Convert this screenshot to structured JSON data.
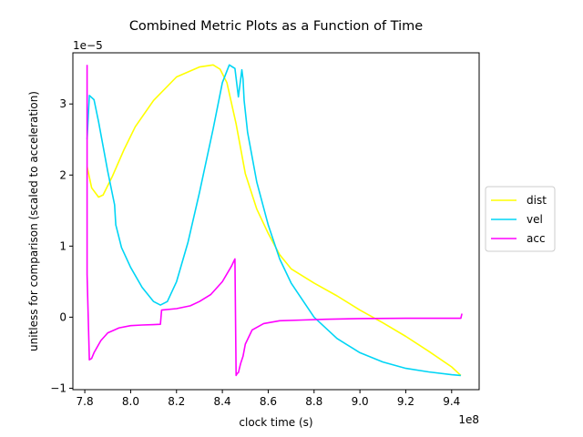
{
  "chart_data": {
    "type": "line",
    "title": "Combined Metric Plots as a Function of Time",
    "xlabel": "clock time (s)",
    "ylabel": "unitless for comparison (scaled to acceleration)",
    "x_offset_label": "1e8",
    "y_offset_label": "1e−5",
    "xlim": [
      7.748,
      9.52
    ],
    "ylim": [
      -1.02,
      3.72
    ],
    "x_ticks": [
      7.8,
      8.0,
      8.2,
      8.4,
      8.6,
      8.8,
      9.0,
      9.2,
      9.4
    ],
    "x_tick_labels": [
      "7.8",
      "8.0",
      "8.2",
      "8.4",
      "8.6",
      "8.8",
      "9.0",
      "9.2",
      "9.4"
    ],
    "y_ticks": [
      -1,
      0,
      1,
      2,
      3
    ],
    "y_tick_labels": [
      "−1",
      "0",
      "1",
      "2",
      "3"
    ],
    "grid": false,
    "legend_position": "center-right, outside plot",
    "series": [
      {
        "name": "dist",
        "color": "#ffff00",
        "x": [
          7.81,
          7.83,
          7.86,
          7.88,
          7.92,
          7.97,
          8.02,
          8.1,
          8.2,
          8.3,
          8.36,
          8.39,
          8.42,
          8.46,
          8.5,
          8.55,
          8.6,
          8.65,
          8.7,
          8.8,
          8.9,
          9.0,
          9.1,
          9.2,
          9.3,
          9.4,
          9.44
        ],
        "y": [
          2.12,
          1.82,
          1.69,
          1.72,
          1.98,
          2.35,
          2.68,
          3.05,
          3.38,
          3.52,
          3.55,
          3.49,
          3.3,
          2.72,
          2.02,
          1.52,
          1.18,
          0.88,
          0.68,
          0.48,
          0.3,
          0.1,
          -0.08,
          -0.27,
          -0.48,
          -0.7,
          -0.82
        ]
      },
      {
        "name": "vel",
        "color": "#00d5f5",
        "x": [
          7.81,
          7.82,
          7.84,
          7.86,
          7.9,
          7.93,
          7.935,
          7.96,
          8.0,
          8.05,
          8.1,
          8.13,
          8.16,
          8.2,
          8.25,
          8.3,
          8.36,
          8.4,
          8.43,
          8.455,
          8.47,
          8.485,
          8.49,
          8.495,
          8.51,
          8.55,
          8.6,
          8.65,
          8.7,
          8.8,
          8.9,
          9.0,
          9.1,
          9.2,
          9.3,
          9.4,
          9.44
        ],
        "y": [
          2.5,
          3.12,
          3.06,
          2.75,
          2.05,
          1.58,
          1.3,
          0.98,
          0.7,
          0.42,
          0.22,
          0.17,
          0.22,
          0.5,
          1.05,
          1.75,
          2.65,
          3.3,
          3.55,
          3.5,
          3.1,
          3.48,
          3.35,
          3.05,
          2.6,
          1.9,
          1.3,
          0.82,
          0.48,
          0.0,
          -0.3,
          -0.5,
          -0.63,
          -0.72,
          -0.77,
          -0.81,
          -0.82
        ]
      },
      {
        "name": "acc",
        "color": "#ff00ff",
        "x": [
          7.81,
          7.81,
          7.82,
          7.83,
          7.84,
          7.87,
          7.9,
          7.95,
          8.0,
          8.05,
          8.1,
          8.13,
          8.135,
          8.135,
          8.2,
          8.26,
          8.3,
          8.35,
          8.4,
          8.44,
          8.455,
          8.46,
          8.465,
          8.47,
          8.48,
          8.49,
          8.5,
          8.53,
          8.58,
          8.65,
          8.75,
          8.85,
          9.0,
          9.2,
          9.4,
          9.44,
          9.445
        ],
        "y": [
          3.55,
          0.6,
          -0.6,
          -0.58,
          -0.5,
          -0.33,
          -0.22,
          -0.15,
          -0.12,
          -0.11,
          -0.105,
          -0.1,
          0.1,
          0.1,
          0.12,
          0.16,
          0.22,
          0.32,
          0.5,
          0.72,
          0.82,
          -0.82,
          -0.79,
          -0.78,
          -0.65,
          -0.55,
          -0.38,
          -0.18,
          -0.09,
          -0.05,
          -0.04,
          -0.03,
          -0.02,
          -0.015,
          -0.015,
          -0.015,
          0.05
        ]
      }
    ]
  }
}
